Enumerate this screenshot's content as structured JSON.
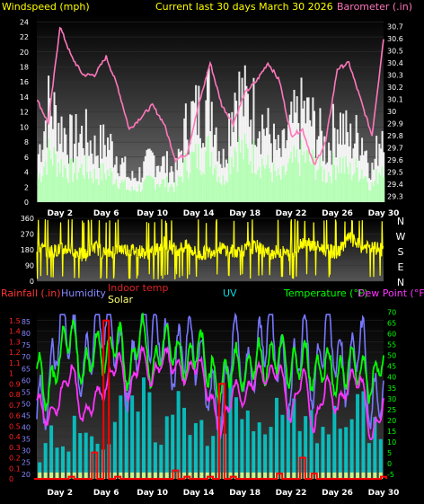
{
  "header": {
    "left": "Windspeed (mph)",
    "center": "Current last 30 days March 30 2026",
    "right": "Barometer (.in)"
  },
  "compass": [
    "N",
    "W",
    "S",
    "E",
    "N"
  ],
  "header3": {
    "rain": "Rainfall (.in)",
    "humidity": "Humidity",
    "indoor": "Indoor temp",
    "solar": "Solar",
    "uv": "UV",
    "temp": "Temperature (°F)",
    "dew": "Dew Point (°F)"
  },
  "colors": {
    "wind": "#ffffff",
    "gust": "#aaffaa",
    "baro": "#ff77bb",
    "dir": "#ffff00",
    "temp": "#00ff00",
    "dew": "#ff33ff",
    "humidity": "#7777ff",
    "rain": "#ff0000",
    "solar": "#ffff77",
    "uv": "#00dddd"
  },
  "chart_data": [
    {
      "type": "area",
      "name": "wind-baro",
      "x_ticks": [
        "Day 2",
        "Day 6",
        "Day 10",
        "Day 14",
        "Day 18",
        "Day 22",
        "Day 26",
        "Day 30"
      ],
      "xlim": [
        0,
        30
      ],
      "ylim_left": [
        0,
        25
      ],
      "yticks_left": [
        0,
        2,
        4,
        6,
        8,
        10,
        12,
        14,
        16,
        18,
        20,
        22,
        24
      ],
      "ylim_right": [
        29.25,
        30.8
      ],
      "yticks_right": [
        29.3,
        29.4,
        29.5,
        29.6,
        29.7,
        29.8,
        29.9,
        30,
        30.1,
        30.2,
        30.3,
        30.4,
        30.5,
        30.6,
        30.7
      ],
      "series": [
        {
          "label": "Windspeed (mph)",
          "axis": "left",
          "x": [
            0,
            1,
            2,
            3,
            4,
            5,
            6,
            7,
            8,
            9,
            10,
            11,
            12,
            13,
            14,
            15,
            16,
            17,
            18,
            19,
            20,
            21,
            22,
            23,
            24,
            25,
            26,
            27,
            28,
            29,
            30
          ],
          "values": [
            6,
            13,
            10,
            8,
            9,
            7,
            8,
            6,
            3,
            4,
            6,
            5,
            4,
            11,
            12,
            14,
            5,
            15,
            13,
            12,
            9,
            6,
            10,
            12,
            10,
            7,
            11,
            8,
            9,
            4,
            12
          ]
        },
        {
          "label": "Barometer (.in)",
          "axis": "right",
          "x": [
            0,
            1,
            2,
            3,
            4,
            5,
            6,
            7,
            8,
            9,
            10,
            11,
            12,
            13,
            14,
            15,
            16,
            17,
            18,
            19,
            20,
            21,
            22,
            23,
            24,
            25,
            26,
            27,
            28,
            29,
            30
          ],
          "values": [
            30.1,
            29.9,
            30.7,
            30.45,
            30.3,
            30.3,
            30.45,
            30.2,
            29.85,
            29.95,
            30.05,
            29.9,
            29.6,
            29.65,
            30.05,
            30.4,
            30.05,
            29.9,
            30.15,
            30.25,
            30.4,
            30.25,
            29.8,
            29.85,
            29.55,
            29.75,
            30.35,
            30.4,
            30.1,
            29.8,
            30.6
          ]
        }
      ]
    },
    {
      "type": "line",
      "name": "wind-direction",
      "x_ticks": [
        "Day 2",
        "Day 6",
        "Day 10",
        "Day 14",
        "Day 18",
        "Day 22",
        "Day 26",
        "Day 30"
      ],
      "xlim": [
        0,
        30
      ],
      "ylim": [
        0,
        360
      ],
      "yticks": [
        0,
        90,
        180,
        270,
        360
      ],
      "series": [
        {
          "label": "Wind direction",
          "x": [
            0,
            1,
            2,
            3,
            4,
            5,
            6,
            7,
            8,
            9,
            10,
            11,
            12,
            13,
            14,
            15,
            16,
            17,
            18,
            19,
            20,
            21,
            22,
            23,
            24,
            25,
            26,
            27,
            28,
            29,
            30
          ],
          "values": [
            200,
            170,
            180,
            190,
            140,
            200,
            150,
            190,
            180,
            170,
            160,
            220,
            180,
            200,
            150,
            170,
            190,
            170,
            180,
            200,
            160,
            170,
            150,
            230,
            200,
            180,
            160,
            250,
            200,
            190,
            180
          ]
        }
      ]
    },
    {
      "type": "line",
      "name": "temp-humidity-rain",
      "x_ticks": [
        "Day 2",
        "Day 6",
        "Day 10",
        "Day 14",
        "Day 18",
        "Day 22",
        "Day 26",
        "Day 30"
      ],
      "xlim": [
        0,
        30
      ],
      "ylim_left_humidity": [
        18,
        90
      ],
      "yticks_humidity": [
        20,
        25,
        30,
        35,
        40,
        45,
        50,
        55,
        60,
        65,
        70,
        75,
        80,
        85
      ],
      "ylim_rain": [
        0,
        1.6
      ],
      "yticks_rain": [
        0,
        0.1,
        0.2,
        0.3,
        0.4,
        0.5,
        0.6,
        0.7,
        0.8,
        0.9,
        1,
        1.1,
        1.2,
        1.3,
        1.4,
        1.5
      ],
      "ylim_right_temp": [
        -7,
        71
      ],
      "yticks_temp": [
        -5,
        0,
        5,
        10,
        15,
        20,
        25,
        30,
        35,
        40,
        45,
        50,
        55,
        60,
        65,
        70
      ],
      "series": [
        {
          "label": "Temperature (°F)",
          "axis": "temp",
          "x": [
            0,
            1,
            2,
            3,
            4,
            5,
            6,
            7,
            8,
            9,
            10,
            11,
            12,
            13,
            14,
            15,
            16,
            17,
            18,
            19,
            20,
            21,
            22,
            23,
            24,
            25,
            26,
            27,
            28,
            29,
            30
          ],
          "values": [
            45,
            30,
            50,
            62,
            40,
            55,
            48,
            60,
            38,
            65,
            40,
            58,
            52,
            45,
            56,
            42,
            35,
            48,
            40,
            50,
            45,
            52,
            42,
            50,
            40,
            48,
            38,
            46,
            44,
            35,
            52
          ]
        },
        {
          "label": "Dew Point (°F)",
          "axis": "temp",
          "x": [
            0,
            1,
            2,
            3,
            4,
            5,
            6,
            7,
            8,
            9,
            10,
            11,
            12,
            13,
            14,
            15,
            16,
            17,
            18,
            19,
            20,
            21,
            22,
            23,
            24,
            25,
            26,
            27,
            28,
            29,
            30
          ],
          "values": [
            30,
            20,
            30,
            45,
            20,
            30,
            35,
            50,
            30,
            52,
            38,
            50,
            45,
            40,
            48,
            30,
            15,
            35,
            30,
            42,
            40,
            45,
            20,
            44,
            15,
            38,
            25,
            38,
            40,
            10,
            30
          ]
        },
        {
          "label": "Humidity",
          "axis": "humidity",
          "x": [
            0,
            1,
            2,
            3,
            4,
            5,
            6,
            7,
            8,
            9,
            10,
            11,
            12,
            13,
            14,
            15,
            16,
            17,
            18,
            19,
            20,
            21,
            22,
            23,
            24,
            25,
            26,
            27,
            28,
            29,
            30
          ],
          "values": [
            45,
            55,
            85,
            80,
            60,
            84,
            85,
            75,
            55,
            85,
            80,
            78,
            65,
            80,
            70,
            55,
            45,
            82,
            60,
            68,
            85,
            70,
            55,
            83,
            55,
            85,
            70,
            60,
            82,
            45,
            60
          ]
        },
        {
          "label": "Rainfall (.in)",
          "axis": "rain",
          "x": [
            0,
            1,
            2,
            3,
            4,
            5,
            6,
            7,
            8,
            9,
            10,
            11,
            12,
            13,
            14,
            15,
            16,
            17,
            18,
            19,
            20,
            21,
            22,
            23,
            24,
            25,
            26,
            27,
            28,
            29,
            30
          ],
          "values": [
            0,
            0,
            0,
            0.02,
            0,
            0.25,
            1.5,
            0.02,
            0,
            0,
            0,
            0,
            0.08,
            0.02,
            0,
            0.02,
            0.9,
            0.02,
            0,
            0,
            0,
            0.05,
            0,
            0.2,
            0.05,
            0,
            0,
            0,
            0,
            0,
            0.02
          ]
        },
        {
          "label": "UV",
          "axis": "rain",
          "x": [
            0,
            1,
            2,
            3,
            4,
            5,
            6,
            7,
            8,
            9,
            10,
            11,
            12,
            13,
            14,
            15,
            16,
            17,
            18,
            19,
            20,
            21,
            22,
            23,
            24,
            25,
            26,
            27,
            28,
            29,
            30
          ],
          "values": [
            0.2,
            0.5,
            0.6,
            0.4,
            0.7,
            0.5,
            0.3,
            0.6,
            0.7,
            0.8,
            0.6,
            0.5,
            0.7,
            0.8,
            0.6,
            0.5,
            0.7,
            0.8,
            0.6,
            0.5,
            0.7,
            0.6,
            0.7,
            0.5,
            0.6,
            0.7,
            0.5,
            0.6,
            0.7,
            0.5,
            0.6
          ]
        }
      ]
    }
  ]
}
